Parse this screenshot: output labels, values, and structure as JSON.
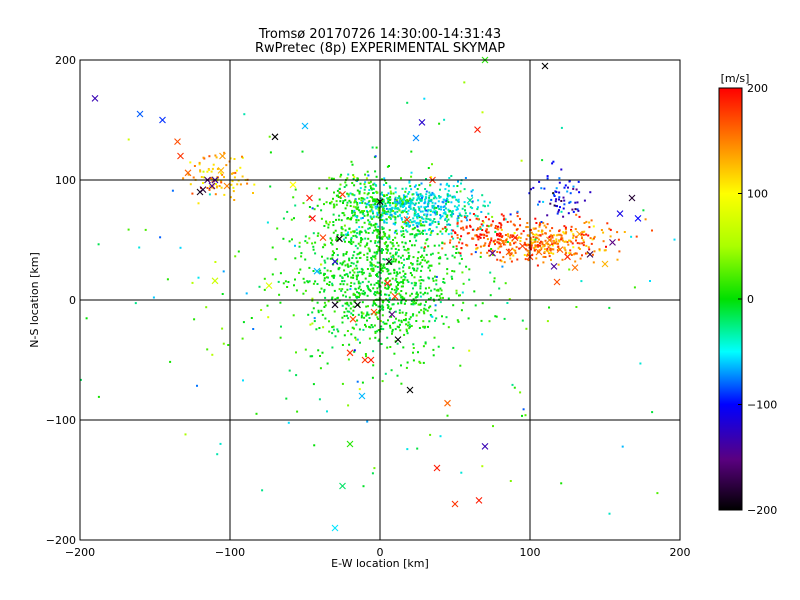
{
  "chart_data": {
    "type": "scatter",
    "title": "Tromsø 20170726 14:30:00-14:31:43",
    "subtitle": "RwPretec (8p) EXPERIMENTAL SKYMAP",
    "xlabel": "E-W location [km]",
    "ylabel": "N-S location [km]",
    "xlim": [
      -200,
      200
    ],
    "ylim": [
      -200,
      200
    ],
    "xticks": [
      -200,
      -100,
      0,
      100,
      200
    ],
    "yticks": [
      -200,
      -100,
      0,
      100,
      200
    ],
    "xtick_labels": [
      "−200",
      "−100",
      "0",
      "100",
      "200"
    ],
    "ytick_labels": [
      "−200",
      "−100",
      "0",
      "100",
      "200"
    ],
    "grid": true,
    "colorbar": {
      "label": "[m/s]",
      "range": [
        -200,
        200
      ],
      "ticks": [
        -200,
        -100,
        0,
        100,
        200
      ],
      "tick_labels": [
        "−200",
        "−100",
        "0",
        "100",
        "200"
      ]
    },
    "marker_styles": [
      "dot",
      "cross"
    ],
    "series": [
      {
        "marker": "cross",
        "x": -190,
        "y": 168,
        "v": -130
      },
      {
        "marker": "cross",
        "x": -160,
        "y": 155,
        "v": -80
      },
      {
        "marker": "cross",
        "x": -145,
        "y": 150,
        "v": -90
      },
      {
        "marker": "cross",
        "x": -135,
        "y": 132,
        "v": 170
      },
      {
        "marker": "cross",
        "x": -133,
        "y": 120,
        "v": 180
      },
      {
        "marker": "cross",
        "x": -128,
        "y": 106,
        "v": 160
      },
      {
        "marker": "cross",
        "x": -120,
        "y": 90,
        "v": -190
      },
      {
        "marker": "cross",
        "x": -118,
        "y": 92,
        "v": -180
      },
      {
        "marker": "cross",
        "x": -115,
        "y": 100,
        "v": -160
      },
      {
        "marker": "cross",
        "x": -112,
        "y": 95,
        "v": -140
      },
      {
        "marker": "cross",
        "x": -110,
        "y": 100,
        "v": -130
      },
      {
        "marker": "cross",
        "x": -106,
        "y": 108,
        "v": 130
      },
      {
        "marker": "cross",
        "x": -105,
        "y": 120,
        "v": 140
      },
      {
        "marker": "cross",
        "x": -102,
        "y": 95,
        "v": 150
      },
      {
        "marker": "cross",
        "x": -70,
        "y": 136,
        "v": -200
      },
      {
        "marker": "cross",
        "x": -58,
        "y": 96,
        "v": 100
      },
      {
        "marker": "cross",
        "x": -50,
        "y": 145,
        "v": -60
      },
      {
        "marker": "cross",
        "x": -47,
        "y": 85,
        "v": 190
      },
      {
        "marker": "cross",
        "x": -45,
        "y": 68,
        "v": 200
      },
      {
        "marker": "cross",
        "x": -42,
        "y": 24,
        "v": -60
      },
      {
        "marker": "cross",
        "x": -38,
        "y": 52,
        "v": 175
      },
      {
        "marker": "cross",
        "x": -30,
        "y": 32,
        "v": -120
      },
      {
        "marker": "cross",
        "x": -30,
        "y": -4,
        "v": -190
      },
      {
        "marker": "cross",
        "x": -27,
        "y": 51,
        "v": -200
      },
      {
        "marker": "cross",
        "x": -25,
        "y": 88,
        "v": 180
      },
      {
        "marker": "cross",
        "x": -20,
        "y": -44,
        "v": 180
      },
      {
        "marker": "cross",
        "x": -18,
        "y": -16,
        "v": 170
      },
      {
        "marker": "cross",
        "x": -15,
        "y": -4,
        "v": -200
      },
      {
        "marker": "cross",
        "x": -12,
        "y": -80,
        "v": -60
      },
      {
        "marker": "cross",
        "x": -10,
        "y": -50,
        "v": 180
      },
      {
        "marker": "cross",
        "x": -6,
        "y": -50,
        "v": 190
      },
      {
        "marker": "cross",
        "x": -4,
        "y": -10,
        "v": 170
      },
      {
        "marker": "cross",
        "x": 0,
        "y": 82,
        "v": -200
      },
      {
        "marker": "cross",
        "x": 5,
        "y": 14,
        "v": 185
      },
      {
        "marker": "cross",
        "x": 6,
        "y": 32,
        "v": -190
      },
      {
        "marker": "cross",
        "x": 8,
        "y": -12,
        "v": -150
      },
      {
        "marker": "cross",
        "x": 10,
        "y": 3,
        "v": 175
      },
      {
        "marker": "cross",
        "x": 12,
        "y": -33,
        "v": -200
      },
      {
        "marker": "cross",
        "x": 18,
        "y": 67,
        "v": 180
      },
      {
        "marker": "cross",
        "x": 20,
        "y": -75,
        "v": -200
      },
      {
        "marker": "cross",
        "x": 24,
        "y": 135,
        "v": -70
      },
      {
        "marker": "cross",
        "x": 28,
        "y": 148,
        "v": -120
      },
      {
        "marker": "cross",
        "x": 35,
        "y": 100,
        "v": 180
      },
      {
        "marker": "cross",
        "x": 38,
        "y": -140,
        "v": 190
      },
      {
        "marker": "cross",
        "x": 45,
        "y": -86,
        "v": 160
      },
      {
        "marker": "cross",
        "x": 50,
        "y": -170,
        "v": 180
      },
      {
        "marker": "cross",
        "x": 65,
        "y": 142,
        "v": 190
      },
      {
        "marker": "cross",
        "x": 66,
        "y": -167,
        "v": 190
      },
      {
        "marker": "cross",
        "x": 70,
        "y": -122,
        "v": -130
      },
      {
        "marker": "cross",
        "x": 75,
        "y": 39,
        "v": -150
      },
      {
        "marker": "cross",
        "x": 82,
        "y": 48,
        "v": 150
      },
      {
        "marker": "cross",
        "x": 86,
        "y": 40,
        "v": 170
      },
      {
        "marker": "cross",
        "x": 90,
        "y": 52,
        "v": 190
      },
      {
        "marker": "cross",
        "x": 95,
        "y": 45,
        "v": 175
      },
      {
        "marker": "cross",
        "x": 100,
        "y": 36,
        "v": 180
      },
      {
        "marker": "cross",
        "x": 106,
        "y": 40,
        "v": 160
      },
      {
        "marker": "cross",
        "x": 110,
        "y": 195,
        "v": -200
      },
      {
        "marker": "cross",
        "x": 113,
        "y": 50,
        "v": 150
      },
      {
        "marker": "cross",
        "x": 116,
        "y": 28,
        "v": -140
      },
      {
        "marker": "cross",
        "x": 118,
        "y": 15,
        "v": 170
      },
      {
        "marker": "cross",
        "x": 120,
        "y": 42,
        "v": 165
      },
      {
        "marker": "cross",
        "x": 125,
        "y": 36,
        "v": 185
      },
      {
        "marker": "cross",
        "x": 130,
        "y": 27,
        "v": 155
      },
      {
        "marker": "cross",
        "x": 133,
        "y": 55,
        "v": 140
      },
      {
        "marker": "cross",
        "x": 140,
        "y": 38,
        "v": -170
      },
      {
        "marker": "cross",
        "x": 150,
        "y": 30,
        "v": 130
      },
      {
        "marker": "cross",
        "x": 155,
        "y": 48,
        "v": -150
      },
      {
        "marker": "cross",
        "x": 160,
        "y": 72,
        "v": -110
      },
      {
        "marker": "cross",
        "x": 168,
        "y": 85,
        "v": -180
      },
      {
        "marker": "cross",
        "x": 172,
        "y": 68,
        "v": -100
      },
      {
        "marker": "cross",
        "x": -74,
        "y": 12,
        "v": 80
      },
      {
        "marker": "cross",
        "x": -110,
        "y": 16,
        "v": 70
      },
      {
        "marker": "cross",
        "x": 70,
        "y": 200,
        "v": 10
      },
      {
        "marker": "cross",
        "x": 60,
        "y": 83,
        "v": -30
      },
      {
        "marker": "cross",
        "x": -30,
        "y": -190,
        "v": -50
      },
      {
        "marker": "cross",
        "x": -25,
        "y": -155,
        "v": -20
      },
      {
        "marker": "cross",
        "x": -20,
        "y": -120,
        "v": 10
      }
    ],
    "clusters": [
      {
        "marker": "dot",
        "cx": 0,
        "cy": 20,
        "sx": 28,
        "sy": 32,
        "n": 1100,
        "v_mean": 0,
        "v_spread": 12
      },
      {
        "marker": "dot",
        "cx": 25,
        "cy": 78,
        "sx": 20,
        "sy": 11,
        "n": 500,
        "v_mean": -45,
        "v_spread": 15
      },
      {
        "marker": "dot",
        "cx": -10,
        "cy": 80,
        "sx": 15,
        "sy": 15,
        "n": 220,
        "v_mean": 10,
        "v_spread": 12
      },
      {
        "marker": "dot",
        "cx": 110,
        "cy": 48,
        "sx": 22,
        "sy": 8,
        "n": 340,
        "v_mean": 150,
        "v_spread": 25
      },
      {
        "marker": "dot",
        "cx": 70,
        "cy": 55,
        "sx": 14,
        "sy": 9,
        "n": 120,
        "v_mean": 185,
        "v_spread": 15
      },
      {
        "marker": "dot",
        "cx": 120,
        "cy": 85,
        "sx": 10,
        "sy": 12,
        "n": 70,
        "v_mean": -110,
        "v_spread": 25
      },
      {
        "marker": "dot",
        "cx": -108,
        "cy": 102,
        "sx": 10,
        "sy": 10,
        "n": 90,
        "v_mean": 130,
        "v_spread": 25
      },
      {
        "marker": "dot",
        "cx": 0,
        "cy": 0,
        "sx": 90,
        "sy": 90,
        "n": 200,
        "v_mean": 0,
        "v_spread": 45
      }
    ]
  }
}
